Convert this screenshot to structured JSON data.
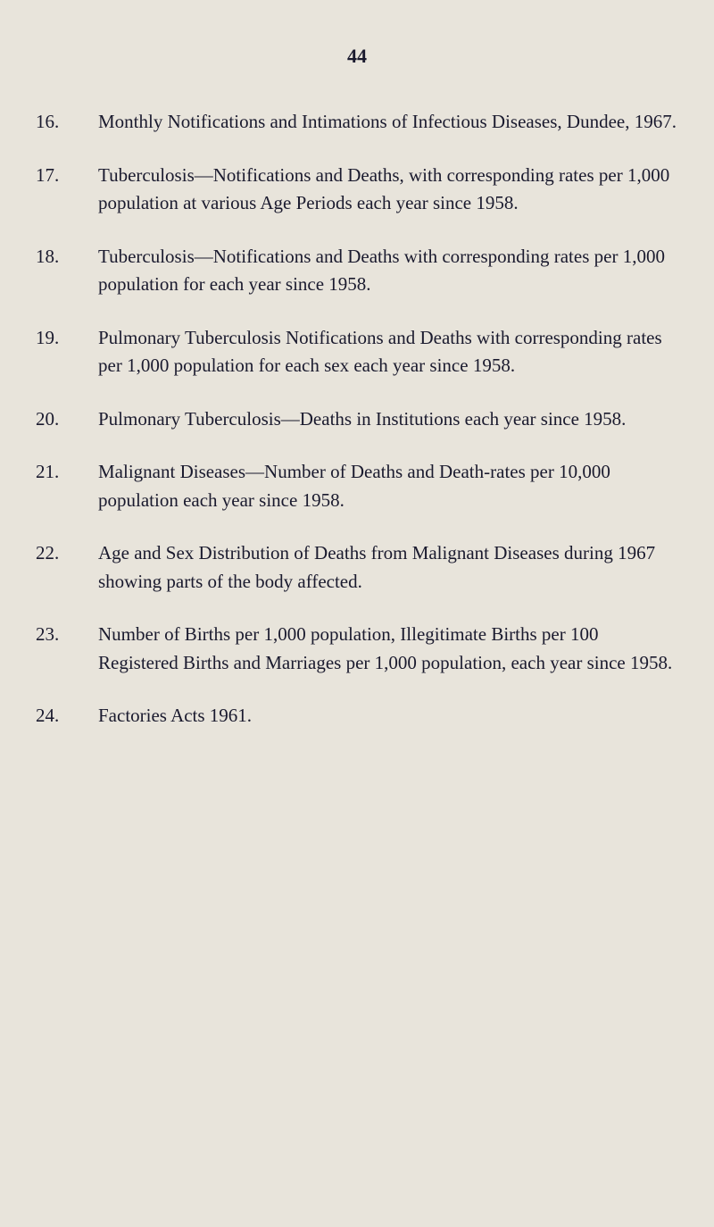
{
  "page_number": "44",
  "entries": [
    {
      "number": "16.",
      "text": "Monthly Notifications and Intimations of Infectious Diseases, Dundee, 1967."
    },
    {
      "number": "17.",
      "text": "Tuberculosis—Notifications and Deaths, with corresponding rates per 1,000 population at various Age Periods each year since 1958."
    },
    {
      "number": "18.",
      "text": "Tuberculosis—Notifications and Deaths with corresponding rates per 1,000 population for each year since 1958."
    },
    {
      "number": "19.",
      "text": "Pulmonary Tuberculosis Notifications and Deaths with corresponding rates per 1,000 population for each sex each year since 1958."
    },
    {
      "number": "20.",
      "text": "Pulmonary Tuberculosis—Deaths in Institutions each year since 1958."
    },
    {
      "number": "21.",
      "text": "Malignant Diseases—Number of Deaths and Death-rates per 10,000 population each year since 1958."
    },
    {
      "number": "22.",
      "text": "Age and Sex Distribution of Deaths from Malignant Diseases during 1967 showing parts of the body affected."
    },
    {
      "number": "23.",
      "text": "Number of Births per 1,000 population, Illegitimate Births per 100 Registered Births and Marriages per 1,000 population, each year since 1958."
    },
    {
      "number": "24.",
      "text": "Factories Acts 1961."
    }
  ]
}
